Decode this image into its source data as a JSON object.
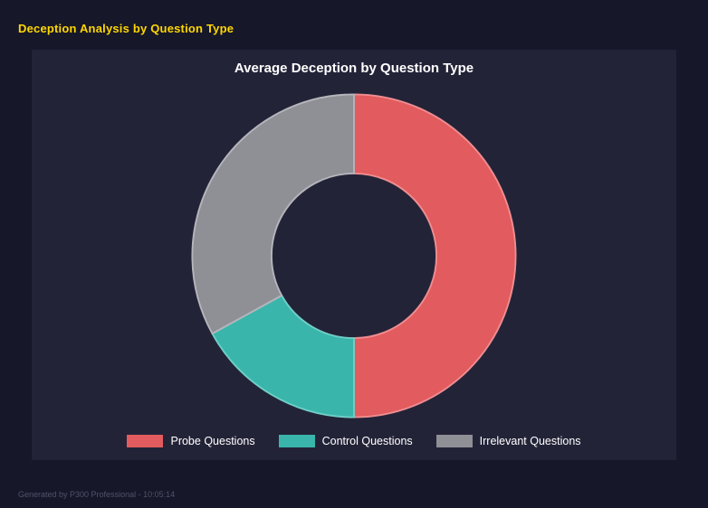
{
  "page": {
    "title": "Deception Analysis by Question Type",
    "footer": "Generated by P300 Professional - 10:05:14"
  },
  "chart_data": {
    "type": "pie",
    "subtype": "donut",
    "title": "Average Deception by Question Type",
    "categories": [
      "Probe Questions",
      "Control Questions",
      "Irrelevant Questions"
    ],
    "values": [
      50,
      17,
      33
    ],
    "colors": [
      "#e25b5e",
      "#3ab5ab",
      "#8f8f96"
    ],
    "border_colors": [
      "#ef8d90",
      "#6fcfc6",
      "#b5b5bc"
    ],
    "legend_position": "bottom",
    "donut_hole_ratio": 0.51,
    "start_angle_deg": 0,
    "direction": "clockwise"
  }
}
